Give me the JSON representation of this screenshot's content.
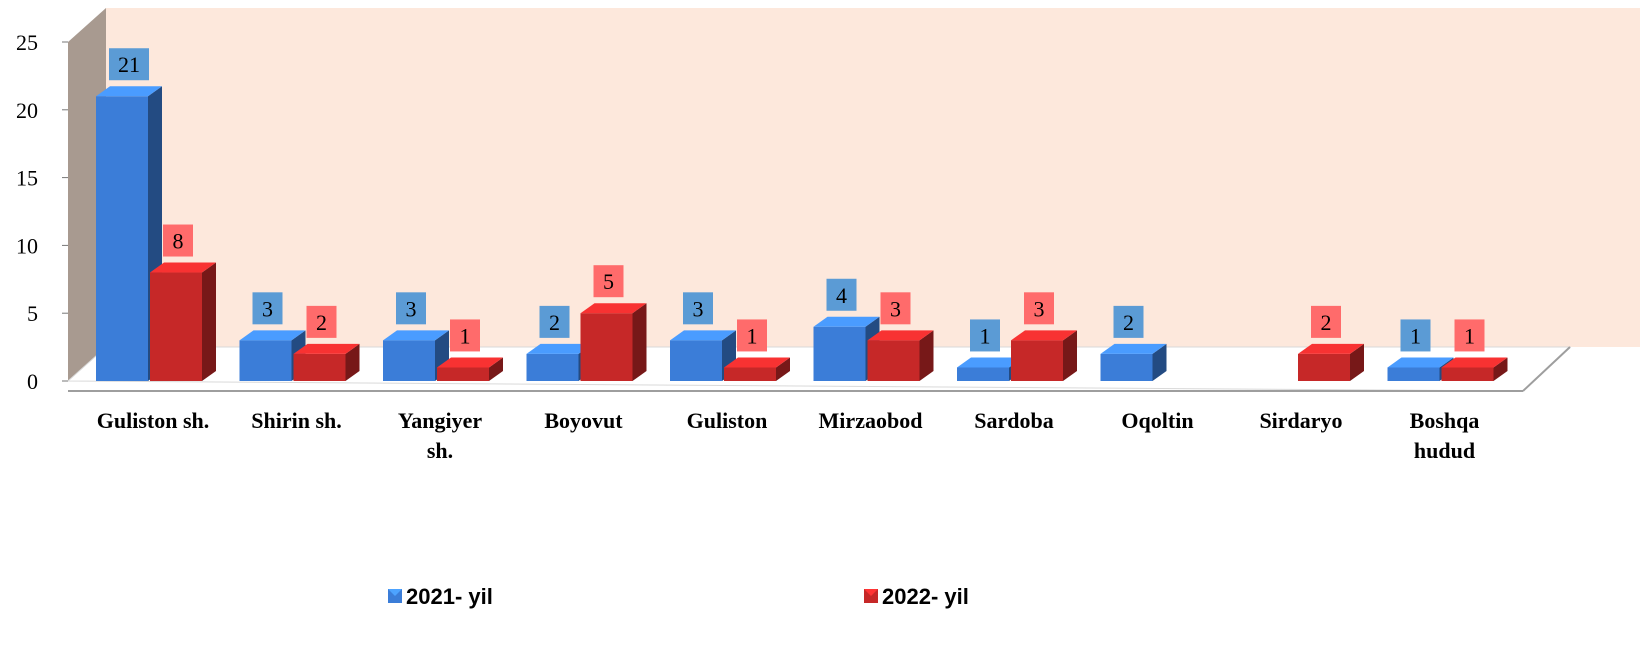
{
  "chart_data": {
    "type": "bar",
    "categories": [
      "Guliston sh.",
      "Shirin sh.",
      "Yangiyer sh.",
      "Boyovut",
      "Guliston",
      "Mirzaobod",
      "Sardoba",
      "Oqoltin",
      "Sirdaryo",
      "Boshqa hudud"
    ],
    "category_lines": [
      [
        "Guliston sh."
      ],
      [
        "Shirin sh."
      ],
      [
        "Yangiyer",
        "sh."
      ],
      [
        "Boyovut"
      ],
      [
        "Guliston"
      ],
      [
        "Mirzaobod"
      ],
      [
        "Sardoba"
      ],
      [
        "Oqoltin"
      ],
      [
        "Sirdaryo"
      ],
      [
        "Boshqa",
        "hudud"
      ]
    ],
    "series": [
      {
        "name": "2021- yil",
        "values": [
          21,
          3,
          3,
          2,
          3,
          4,
          1,
          2,
          null,
          1
        ],
        "color": "#3b7dd8",
        "label_bg": "#5b9bd5"
      },
      {
        "name": "2022- yil",
        "values": [
          8,
          2,
          1,
          5,
          1,
          3,
          3,
          null,
          2,
          1
        ],
        "color": "#c62828",
        "label_bg": "#ff6b6b"
      }
    ],
    "yticks": [
      "0",
      "5",
      "10",
      "15",
      "20",
      "25"
    ],
    "ylim": [
      0,
      25
    ],
    "grid": false,
    "legend_position": "bottom",
    "colors": {
      "backwall": "#fde8dc",
      "sidewall": "#a89a90",
      "floor": "#ffffff"
    }
  }
}
